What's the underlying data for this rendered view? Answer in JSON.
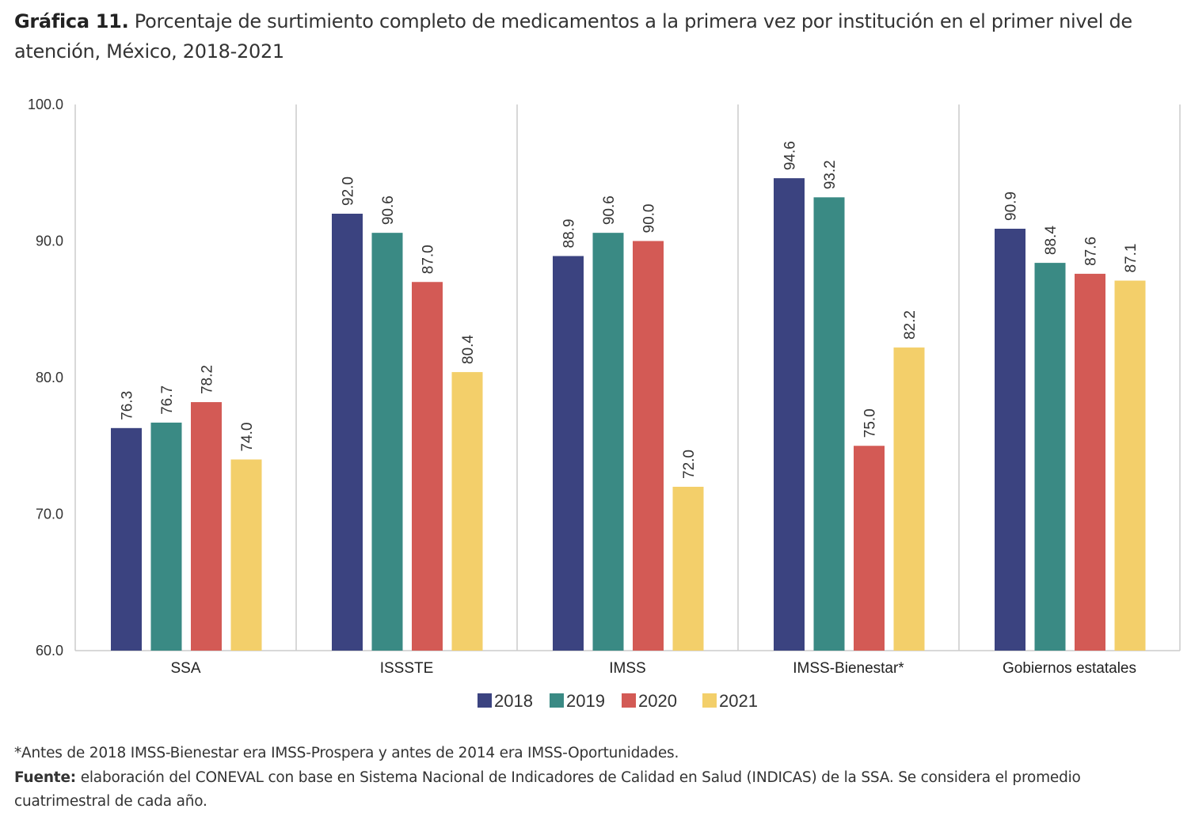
{
  "title": {
    "prefix": "Gráfica 11.",
    "text": "Porcentaje de surtimiento completo de medicamentos a la primera vez por institución en el primer nivel de atención, México, 2018-2021"
  },
  "chart_data": {
    "type": "bar",
    "categories": [
      "SSA",
      "ISSSTE",
      "IMSS",
      "IMSS-Bienestar*",
      "Gobiernos estatales"
    ],
    "series": [
      {
        "name": "2018",
        "color": "#3b4380",
        "values": [
          76.3,
          92.0,
          88.9,
          94.6,
          90.9
        ]
      },
      {
        "name": "2019",
        "color": "#3a8a84",
        "values": [
          76.7,
          90.6,
          90.6,
          93.2,
          88.4
        ]
      },
      {
        "name": "2020",
        "color": "#d35a55",
        "values": [
          78.2,
          87.0,
          90.0,
          75.0,
          87.6
        ]
      },
      {
        "name": "2021",
        "color": "#f3cf6a",
        "values": [
          74.0,
          80.4,
          72.0,
          82.2,
          87.1
        ]
      }
    ],
    "ylim": [
      60,
      100
    ],
    "yticks": [
      "60.0",
      "70.0",
      "80.0",
      "90.0",
      "100.0"
    ],
    "legend": "bottom",
    "grid": false,
    "data_labels": true
  },
  "footnotes": {
    "note": "*Antes de 2018 IMSS-Bienestar era IMSS-Prospera y antes de 2014 era IMSS-Oportunidades.",
    "source_label": "Fuente:",
    "source_text": "elaboración del CONEVAL con base en Sistema Nacional de Indicadores de Calidad en Salud (INDICAS) de la SSA. Se considera el promedio cuatrimestral de cada año."
  }
}
